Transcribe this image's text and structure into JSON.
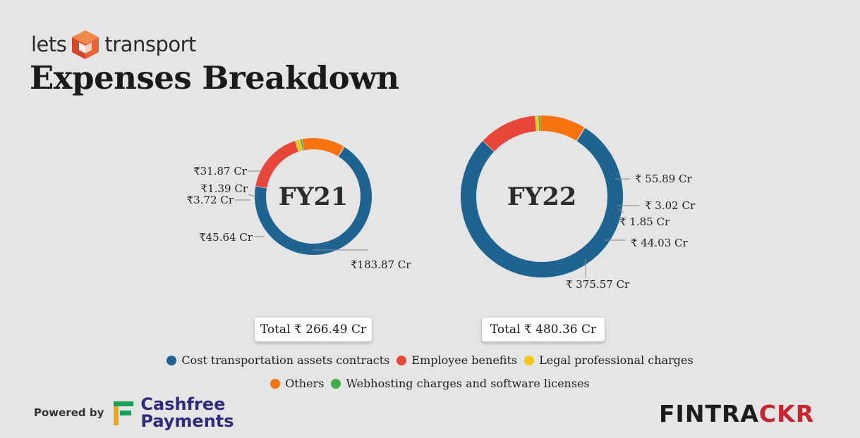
{
  "brand": {
    "logo_left": "lets",
    "logo_right": "transport"
  },
  "title": "Expenses Breakdown",
  "colors": {
    "cost": "#1f6391",
    "employee": "#e7463a",
    "legal": "#f5c518",
    "others": "#f6730f",
    "webhosting": "#3cae4a"
  },
  "chart_data": [
    {
      "type": "pie",
      "variant": "donut",
      "center_label": "FY21",
      "total_label": "Total ₹ 266.49 Cr",
      "slices": [
        {
          "category": "Cost transportation assets contracts",
          "value": 183.87,
          "label": "₹183.87 Cr",
          "color": "#1f6391"
        },
        {
          "category": "Employee benefits",
          "value": 45.64,
          "label": "₹45.64 Cr",
          "color": "#e7463a"
        },
        {
          "category": "Legal professional charges",
          "value": 3.72,
          "label": "₹3.72 Cr",
          "color": "#f5c518"
        },
        {
          "category": "Webhosting charges and software licenses",
          "value": 1.39,
          "label": "₹1.39 Cr",
          "color": "#3cae4a"
        },
        {
          "category": "Others",
          "value": 31.87,
          "label": "₹31.87 Cr",
          "color": "#f6730f"
        }
      ]
    },
    {
      "type": "pie",
      "variant": "donut",
      "center_label": "FY22",
      "total_label": "Total ₹ 480.36 Cr",
      "slices": [
        {
          "category": "Cost transportation assets contracts",
          "value": 375.57,
          "label": "₹ 375.57 Cr",
          "color": "#1f6391"
        },
        {
          "category": "Employee benefits",
          "value": 55.89,
          "label": "₹ 55.89 Cr",
          "color": "#e7463a"
        },
        {
          "category": "Legal professional charges",
          "value": 3.02,
          "label": "₹ 3.02 Cr",
          "color": "#f5c518"
        },
        {
          "category": "Webhosting charges and software licenses",
          "value": 1.85,
          "label": "₹ 1.85 Cr",
          "color": "#3cae4a"
        },
        {
          "category": "Others",
          "value": 44.03,
          "label": "₹ 44.03 Cr",
          "color": "#f6730f"
        }
      ]
    }
  ],
  "legend": {
    "row1": [
      {
        "label": "Cost transportation assets contracts",
        "color": "#1f6391"
      },
      {
        "label": "Employee benefits",
        "color": "#e7463a"
      },
      {
        "label": "Legal professional charges",
        "color": "#f5c518"
      }
    ],
    "row2": [
      {
        "label": "Others",
        "color": "#f6730f"
      },
      {
        "label": "Webhosting charges and software licenses",
        "color": "#3cae4a"
      }
    ]
  },
  "footer": {
    "powered_by": "Powered by",
    "partner_line1": "Cashfree",
    "partner_line2": "Payments",
    "partner_icon": "cashfree-f-icon",
    "fintrackr_part1": "FINTRA",
    "fintrackr_part2": "CKR"
  }
}
